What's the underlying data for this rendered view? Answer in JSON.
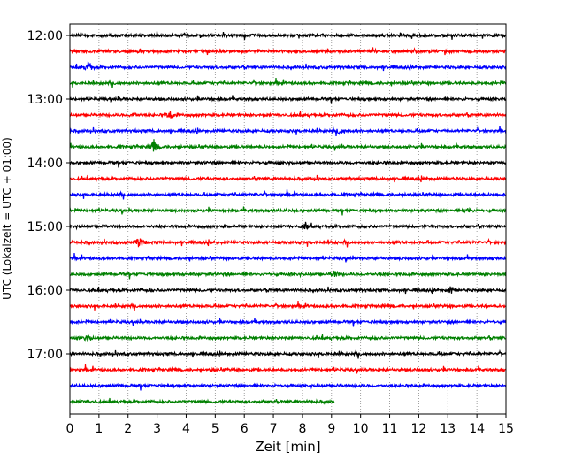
{
  "chart_data": {
    "type": "line",
    "title": "",
    "xlabel": "Zeit  [min]",
    "ylabel": "UTC (Lokalzeit = UTC + 01:00)",
    "xlim": [
      0,
      15
    ],
    "x_ticks": [
      0,
      1,
      2,
      3,
      4,
      5,
      6,
      7,
      8,
      9,
      10,
      11,
      12,
      13,
      14,
      15
    ],
    "y_tick_labels": [
      "12:00",
      "13:00",
      "14:00",
      "15:00",
      "16:00",
      "17:00"
    ],
    "grid": "vertical dotted at each minute",
    "row_interval_minutes": 15,
    "series": [
      {
        "start": "12:00",
        "color": "#000000",
        "end_min": 15
      },
      {
        "start": "12:15",
        "color": "#ff0000",
        "end_min": 15
      },
      {
        "start": "12:30",
        "color": "#0000ff",
        "end_min": 15,
        "events": [
          {
            "t": 0.65,
            "amp": 7
          }
        ]
      },
      {
        "start": "12:45",
        "color": "#008000",
        "end_min": 15
      },
      {
        "start": "13:00",
        "color": "#000000",
        "end_min": 15
      },
      {
        "start": "13:15",
        "color": "#ff0000",
        "end_min": 15,
        "events": [
          {
            "t": 3.45,
            "amp": 5
          },
          {
            "t": 2.2,
            "amp": 3
          }
        ]
      },
      {
        "start": "13:30",
        "color": "#0000ff",
        "end_min": 15,
        "events": [
          {
            "t": 9.3,
            "amp": 4
          }
        ]
      },
      {
        "start": "13:45",
        "color": "#008000",
        "end_min": 15,
        "events": [
          {
            "t": 2.9,
            "amp": 9
          }
        ]
      },
      {
        "start": "14:00",
        "color": "#000000",
        "end_min": 15
      },
      {
        "start": "14:15",
        "color": "#ff0000",
        "end_min": 15
      },
      {
        "start": "14:30",
        "color": "#0000ff",
        "end_min": 15
      },
      {
        "start": "14:45",
        "color": "#008000",
        "end_min": 15,
        "events": [
          {
            "t": 13.7,
            "amp": 3
          }
        ]
      },
      {
        "start": "15:00",
        "color": "#000000",
        "end_min": 15,
        "events": [
          {
            "t": 8.1,
            "amp": 3
          }
        ]
      },
      {
        "start": "15:15",
        "color": "#ff0000",
        "end_min": 15,
        "events": [
          {
            "t": 2.4,
            "amp": 8
          }
        ]
      },
      {
        "start": "15:30",
        "color": "#0000ff",
        "end_min": 15
      },
      {
        "start": "15:45",
        "color": "#008000",
        "end_min": 15,
        "events": [
          {
            "t": 9.1,
            "amp": 4
          }
        ]
      },
      {
        "start": "16:00",
        "color": "#000000",
        "end_min": 15,
        "events": [
          {
            "t": 13.1,
            "amp": 4
          }
        ]
      },
      {
        "start": "16:15",
        "color": "#ff0000",
        "end_min": 15
      },
      {
        "start": "16:30",
        "color": "#0000ff",
        "end_min": 15
      },
      {
        "start": "16:45",
        "color": "#008000",
        "end_min": 15,
        "events": [
          {
            "t": 0.6,
            "amp": 5
          }
        ]
      },
      {
        "start": "17:00",
        "color": "#000000",
        "end_min": 15
      },
      {
        "start": "17:15",
        "color": "#ff0000",
        "end_min": 15
      },
      {
        "start": "17:30",
        "color": "#0000ff",
        "end_min": 15
      },
      {
        "start": "17:45",
        "color": "#008000",
        "end_min": 9.1
      }
    ]
  }
}
